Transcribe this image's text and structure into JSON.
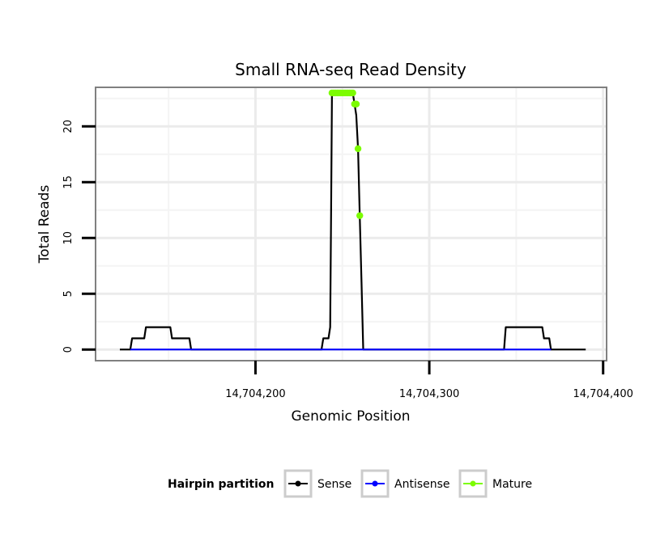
{
  "chart_data": {
    "type": "line",
    "title": "Small RNA-seq Read Density",
    "xlabel": "Genomic Position",
    "ylabel": "Total Reads",
    "xlim": [
      14704108,
      14704402
    ],
    "ylim": [
      -1,
      23.5
    ],
    "x_ticks": [
      {
        "value": 14704200,
        "label": "14,704,200"
      },
      {
        "value": 14704300,
        "label": "14,704,300"
      },
      {
        "value": 14704400,
        "label": "14,704,400"
      }
    ],
    "y_ticks": [
      {
        "value": 0,
        "label": "0"
      },
      {
        "value": 5,
        "label": "5"
      },
      {
        "value": 10,
        "label": "10"
      },
      {
        "value": 15,
        "label": "15"
      },
      {
        "value": 20,
        "label": "20"
      }
    ],
    "grid": true,
    "legend": {
      "title": "Hairpin partition",
      "position": "bottom",
      "entries": [
        {
          "label": "Sense",
          "color": "#000000"
        },
        {
          "label": "Antisense",
          "color": "#0000ff"
        },
        {
          "label": "Mature",
          "color": "#7cfc00"
        }
      ]
    },
    "series": [
      {
        "name": "Sense",
        "color": "#000000",
        "x": [
          14704122,
          14704128,
          14704129,
          14704136,
          14704137,
          14704151,
          14704152,
          14704162,
          14704163,
          14704238,
          14704239,
          14704242,
          14704243,
          14704243.5,
          14704244,
          14704256,
          14704257,
          14704258,
          14704259,
          14704260,
          14704261,
          14704262,
          14704343,
          14704344,
          14704365,
          14704366,
          14704369,
          14704370,
          14704390
        ],
        "y": [
          0,
          0,
          1,
          1,
          2,
          2,
          1,
          1,
          0,
          0,
          1,
          1,
          2,
          12,
          23,
          23,
          22,
          21,
          18,
          12,
          6,
          0,
          0,
          2,
          2,
          1,
          1,
          0,
          0
        ]
      },
      {
        "name": "Antisense",
        "color": "#0000ff",
        "x": [
          14704128,
          14704370
        ],
        "y": [
          0,
          0
        ]
      },
      {
        "name": "Mature",
        "color": "#7cfc00",
        "x": [
          14704244,
          14704245,
          14704246,
          14704247,
          14704248,
          14704249,
          14704250,
          14704251,
          14704252,
          14704253,
          14704254,
          14704255,
          14704256,
          14704257,
          14704258,
          14704259,
          14704260
        ],
        "y": [
          23,
          23,
          23,
          23,
          23,
          23,
          23,
          23,
          23,
          23,
          23,
          23,
          23,
          22,
          22,
          18,
          12
        ]
      }
    ]
  }
}
